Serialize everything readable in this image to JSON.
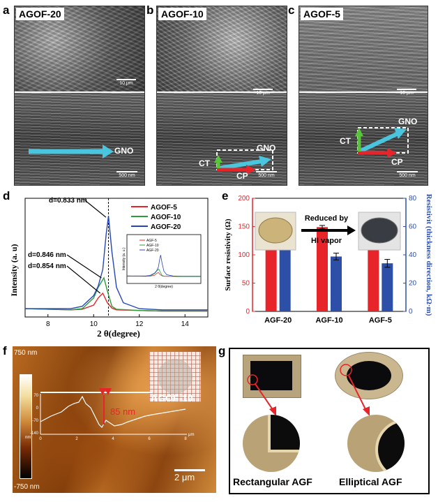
{
  "panels": {
    "a": {
      "letter": "a",
      "tag": "AGOF-20",
      "scale_top": "10 μm",
      "scale_bottom": "500 nm",
      "arrow_label": "GNO"
    },
    "b": {
      "letter": "b",
      "tag": "AGOF-10",
      "scale_top": "10 μm",
      "scale_bottom": "500 nm",
      "labels": {
        "gno": "GNO",
        "ct": "CT",
        "cp": "CP"
      }
    },
    "c": {
      "letter": "c",
      "tag": "AGOF-5",
      "scale_top": "10 μm",
      "scale_bottom": "500 nm",
      "labels": {
        "gno": "GNO",
        "ct": "CT",
        "cp": "CP"
      }
    },
    "d": {
      "letter": "d"
    },
    "e": {
      "letter": "e",
      "annotation": "Reduced by\nHI vapor",
      "annotation_line1": "Reduced by",
      "annotation_line2": "HI vapor"
    },
    "f": {
      "letter": "f",
      "top_scale": "750 nm",
      "bottom_scale": "-750 nm",
      "tag": "AGOF-10",
      "height_label": "85 nm",
      "scale_bar": "2 μm",
      "profile_yticks": [
        "70",
        "0",
        "-70",
        "-140"
      ],
      "profile_xticks": [
        "0",
        "2",
        "4",
        "6",
        "8"
      ],
      "profile_yunit": "nm",
      "profile_xunit": "μm"
    },
    "g": {
      "letter": "g",
      "left_caption": "Rectangular AGF",
      "right_caption": "Elliptical AGF"
    }
  },
  "chart_data": [
    {
      "type": "line",
      "panel": "d",
      "xlabel": "2 θ(degree)",
      "ylabel": "Intensity (a. u)",
      "xlim": [
        7,
        15
      ],
      "xticks": [
        "8",
        "10",
        "12",
        "14"
      ],
      "legend": [
        "AGOF-5",
        "AGOF-10",
        "AGOF-20"
      ],
      "legend_position": "top-right",
      "series": [
        {
          "name": "AGOF-5",
          "color": "#e8242b",
          "peak_x": 10.4,
          "peak_y": 0.2,
          "x": [
            7,
            8,
            9,
            9.5,
            10,
            10.2,
            10.4,
            10.6,
            10.8,
            11,
            12,
            13,
            14,
            15
          ],
          "y": [
            0.07,
            0.065,
            0.06,
            0.065,
            0.1,
            0.16,
            0.2,
            0.12,
            0.075,
            0.06,
            0.055,
            0.05,
            0.05,
            0.05
          ]
        },
        {
          "name": "AGOF-10",
          "color": "#2a9c3a",
          "peak_x": 10.45,
          "peak_y": 0.33,
          "x": [
            7,
            8,
            9,
            9.5,
            10,
            10.2,
            10.45,
            10.6,
            10.8,
            11,
            12,
            13,
            14,
            15
          ],
          "y": [
            0.07,
            0.065,
            0.06,
            0.07,
            0.16,
            0.25,
            0.33,
            0.22,
            0.09,
            0.065,
            0.055,
            0.05,
            0.05,
            0.05
          ]
        },
        {
          "name": "AGOF-20",
          "color": "#2545b8",
          "peak_x": 10.65,
          "peak_y": 0.85,
          "x": [
            7,
            8,
            9,
            9.5,
            10,
            10.2,
            10.4,
            10.55,
            10.65,
            10.8,
            11,
            11.3,
            12,
            13,
            14,
            15
          ],
          "y": [
            0.07,
            0.07,
            0.07,
            0.09,
            0.18,
            0.26,
            0.4,
            0.7,
            0.85,
            0.55,
            0.25,
            0.12,
            0.07,
            0.06,
            0.06,
            0.06
          ]
        }
      ],
      "annotations": [
        "d=0.833 nm",
        "d=0.846 nm",
        "d=0.854 nm"
      ],
      "dashed_line_x": 10.65,
      "inset": {
        "legend": [
          "AGF-5",
          "AGF-10",
          "AGF-20"
        ],
        "xlabel": "2 θ(degree)",
        "ylabel": "Intensity (a. u.)"
      }
    },
    {
      "type": "bar",
      "panel": "e",
      "categories": [
        "AGF-20",
        "AGF-10",
        "AGF-5"
      ],
      "ylabel": "Surface resistivity (Ω)",
      "y2label": "Resistivit (thickness direction, kΩ·m)",
      "ylim": [
        0,
        200
      ],
      "yticks": [
        "0",
        "50",
        "100",
        "150",
        "200"
      ],
      "y2lim": [
        0,
        80
      ],
      "y2ticks": [
        "0",
        "20",
        "40",
        "60",
        "80"
      ],
      "series": [
        {
          "name": "Surface resistivity",
          "axis": "left",
          "color": "#e8242b",
          "values": [
            140,
            149,
            154
          ],
          "errors": [
            6,
            3,
            3
          ]
        },
        {
          "name": "Resistivity thickness",
          "axis": "right",
          "color": "#2d4fa8",
          "values": [
            55.6,
            38.8,
            34.0
          ],
          "errors": [
            3.6,
            2.4,
            2.8
          ]
        }
      ]
    }
  ]
}
